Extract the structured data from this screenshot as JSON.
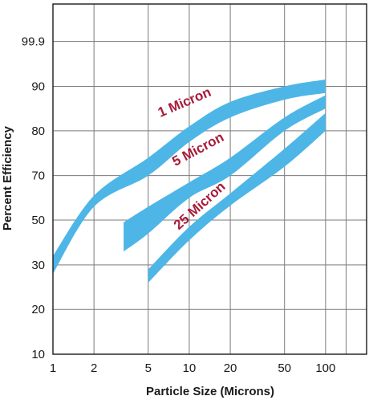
{
  "chart_data": {
    "type": "area",
    "title": "",
    "xlabel": "Particle Size (Microns)",
    "ylabel": "Percent Efficiency",
    "x_scale": "log",
    "xlim": [
      1,
      200
    ],
    "x_ticks": [
      1,
      2,
      5,
      10,
      20,
      50,
      100
    ],
    "x_tick_labels": [
      "1",
      "2",
      "5",
      "10",
      "20",
      "50",
      "100"
    ],
    "ylim": [
      10,
      99.9
    ],
    "y_ticks": [
      10,
      20,
      30,
      50,
      70,
      80,
      90,
      99.9
    ],
    "y_tick_labels": [
      "10",
      "20",
      "30",
      "50",
      "70",
      "80",
      "90",
      "99.9"
    ],
    "grid": true,
    "band_color": "#4db6e6",
    "label_color": "#a81c3a",
    "grid_color": "#7a7a7a",
    "series": [
      {
        "name": "1 Micron",
        "points": [
          {
            "x": 1,
            "low": 28,
            "high": 34
          },
          {
            "x": 2,
            "low": 56,
            "high": 61
          },
          {
            "x": 5,
            "low": 70,
            "high": 74
          },
          {
            "x": 10,
            "low": 77.5,
            "high": 81
          },
          {
            "x": 20,
            "low": 83,
            "high": 86.5
          },
          {
            "x": 50,
            "low": 87,
            "high": 90
          },
          {
            "x": 100,
            "low": 88.5,
            "high": 91.5
          }
        ]
      },
      {
        "name": "5 Micron",
        "points": [
          {
            "x": 3.3,
            "low": 36,
            "high": 49
          },
          {
            "x": 5,
            "low": 44,
            "high": 56
          },
          {
            "x": 10,
            "low": 60,
            "high": 67
          },
          {
            "x": 20,
            "low": 70,
            "high": 74
          },
          {
            "x": 50,
            "low": 80,
            "high": 83
          },
          {
            "x": 100,
            "low": 85,
            "high": 88
          }
        ]
      },
      {
        "name": "25 Micron",
        "points": [
          {
            "x": 5,
            "low": 26,
            "high": 29
          },
          {
            "x": 10,
            "low": 41,
            "high": 47
          },
          {
            "x": 20,
            "low": 56.5,
            "high": 62
          },
          {
            "x": 50,
            "low": 72,
            "high": 76
          },
          {
            "x": 100,
            "low": 80,
            "high": 84
          }
        ]
      }
    ]
  }
}
